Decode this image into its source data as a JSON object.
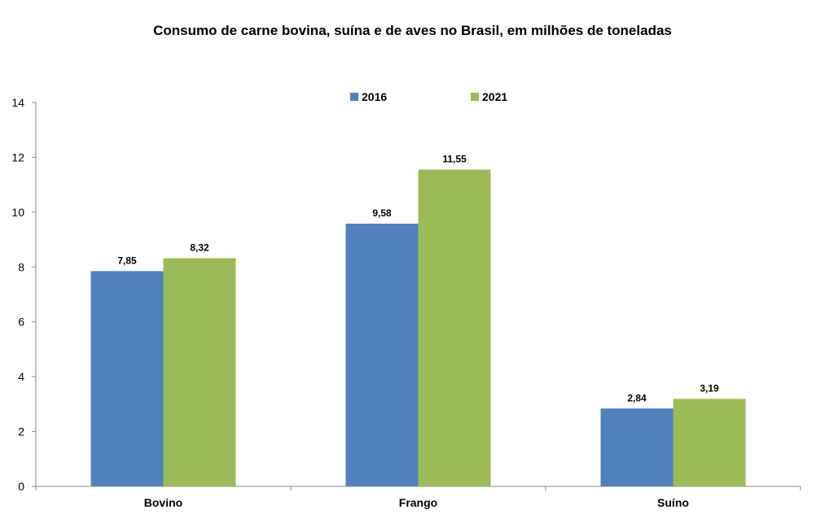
{
  "chart_data": {
    "type": "bar",
    "title": "Consumo de carne bovina, suína e de aves no Brasil, em milhões de toneladas",
    "categories": [
      "Bovino",
      "Frango",
      "Suíno"
    ],
    "series": [
      {
        "name": "2016",
        "values": [
          7.85,
          9.58,
          2.84
        ],
        "labels": [
          "7,85",
          "9,58",
          "2,84"
        ],
        "color": "#4F81BD"
      },
      {
        "name": "2021",
        "values": [
          8.32,
          11.55,
          3.19
        ],
        "labels": [
          "8,32",
          "11,55",
          "3,19"
        ],
        "color": "#9BBB59"
      }
    ],
    "ylim": [
      0,
      14
    ],
    "yticks": [
      0,
      2,
      4,
      6,
      8,
      10,
      12,
      14
    ],
    "grid": false,
    "legend_position": "top-center",
    "xlabel": "",
    "ylabel": ""
  }
}
